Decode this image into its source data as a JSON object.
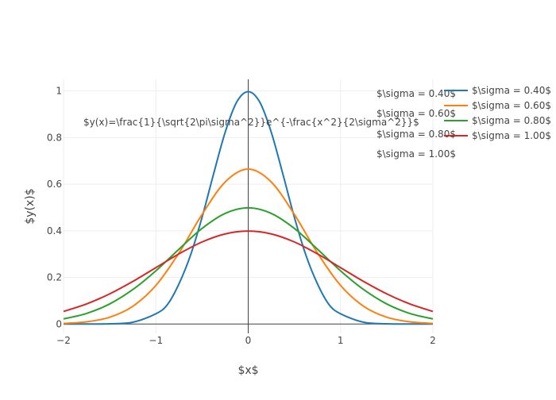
{
  "chart_data": {
    "type": "line",
    "title": "",
    "xlabel": "$x$",
    "ylabel": "$y(x)$",
    "xlim": [
      -2,
      2
    ],
    "ylim": [
      -0.04,
      1.05
    ],
    "x_ticks": [
      -2,
      -1,
      0,
      1,
      2
    ],
    "x_tick_labels": [
      "−2",
      "−1",
      "0",
      "1",
      "2"
    ],
    "y_ticks": [
      0,
      0.2,
      0.4,
      0.6,
      0.8,
      1
    ],
    "y_tick_labels": [
      "0",
      "0.2",
      "0.4",
      "0.6",
      "0.8",
      "1"
    ],
    "grid": true,
    "legend_position": "top-right",
    "formula_annotation": "$y(x)=\\frac{1}{\\sqrt{2\\pi\\sigma^2}}e^{-\\frac{x^2}{2\\sigma^2}}$",
    "curve_labels": [
      "$\\sigma = 0.40$",
      "$\\sigma = 0.60$",
      "$\\sigma = 0.80$",
      "$\\sigma = 1.00$"
    ],
    "series": [
      {
        "name": "$\\sigma = 0.40$",
        "color": "#1f77b4",
        "x": [
          -2,
          -1.75,
          -1.5,
          -1.25,
          -1,
          -0.875,
          -0.75,
          -0.625,
          -0.5,
          -0.375,
          -0.25,
          -0.125,
          0,
          0.125,
          0.25,
          0.375,
          0.5,
          0.625,
          0.75,
          0.875,
          1,
          1.25,
          1.5,
          1.75,
          2
        ],
        "y": [
          0.0,
          0.0,
          0.0009,
          0.0076,
          0.0439,
          0.0836,
          0.1724,
          0.2952,
          0.4578,
          0.6442,
          0.8226,
          0.9524,
          0.9974,
          0.9524,
          0.8226,
          0.6442,
          0.4578,
          0.2952,
          0.1724,
          0.0836,
          0.0439,
          0.0076,
          0.0009,
          0.0,
          0.0
        ]
      },
      {
        "name": "$\\sigma = 0.60$",
        "color": "#ff7f0e",
        "x": [
          -2,
          -1.75,
          -1.5,
          -1.25,
          -1,
          -0.75,
          -0.5,
          -0.25,
          0,
          0.25,
          0.5,
          0.75,
          1,
          1.25,
          1.5,
          1.75,
          2
        ],
        "y": [
          0.0026,
          0.0094,
          0.0292,
          0.0762,
          0.1657,
          0.3048,
          0.4702,
          0.6094,
          0.6649,
          0.6094,
          0.4702,
          0.3048,
          0.1657,
          0.0762,
          0.0292,
          0.0094,
          0.0026
        ]
      },
      {
        "name": "$\\sigma = 0.80$",
        "color": "#2ca02c",
        "x": [
          -2,
          -1.75,
          -1.5,
          -1.25,
          -1,
          -0.75,
          -0.5,
          -0.25,
          0,
          0.25,
          0.5,
          0.75,
          1,
          1.25,
          1.5,
          1.75,
          2
        ],
        "y": [
          0.0219,
          0.0454,
          0.0862,
          0.1478,
          0.2283,
          0.3212,
          0.4102,
          0.4747,
          0.4987,
          0.4747,
          0.4102,
          0.3212,
          0.2283,
          0.1478,
          0.0862,
          0.0454,
          0.0219
        ]
      },
      {
        "name": "$\\sigma = 1.00$",
        "color": "#d62728",
        "x": [
          -2,
          -1.75,
          -1.5,
          -1.25,
          -1,
          -0.75,
          -0.5,
          -0.25,
          0,
          0.25,
          0.5,
          0.75,
          1,
          1.25,
          1.5,
          1.75,
          2
        ],
        "y": [
          0.054,
          0.0863,
          0.1295,
          0.1826,
          0.242,
          0.3011,
          0.3521,
          0.3867,
          0.3989,
          0.3867,
          0.3521,
          0.3011,
          0.242,
          0.1826,
          0.1295,
          0.0863,
          0.054
        ]
      }
    ]
  }
}
